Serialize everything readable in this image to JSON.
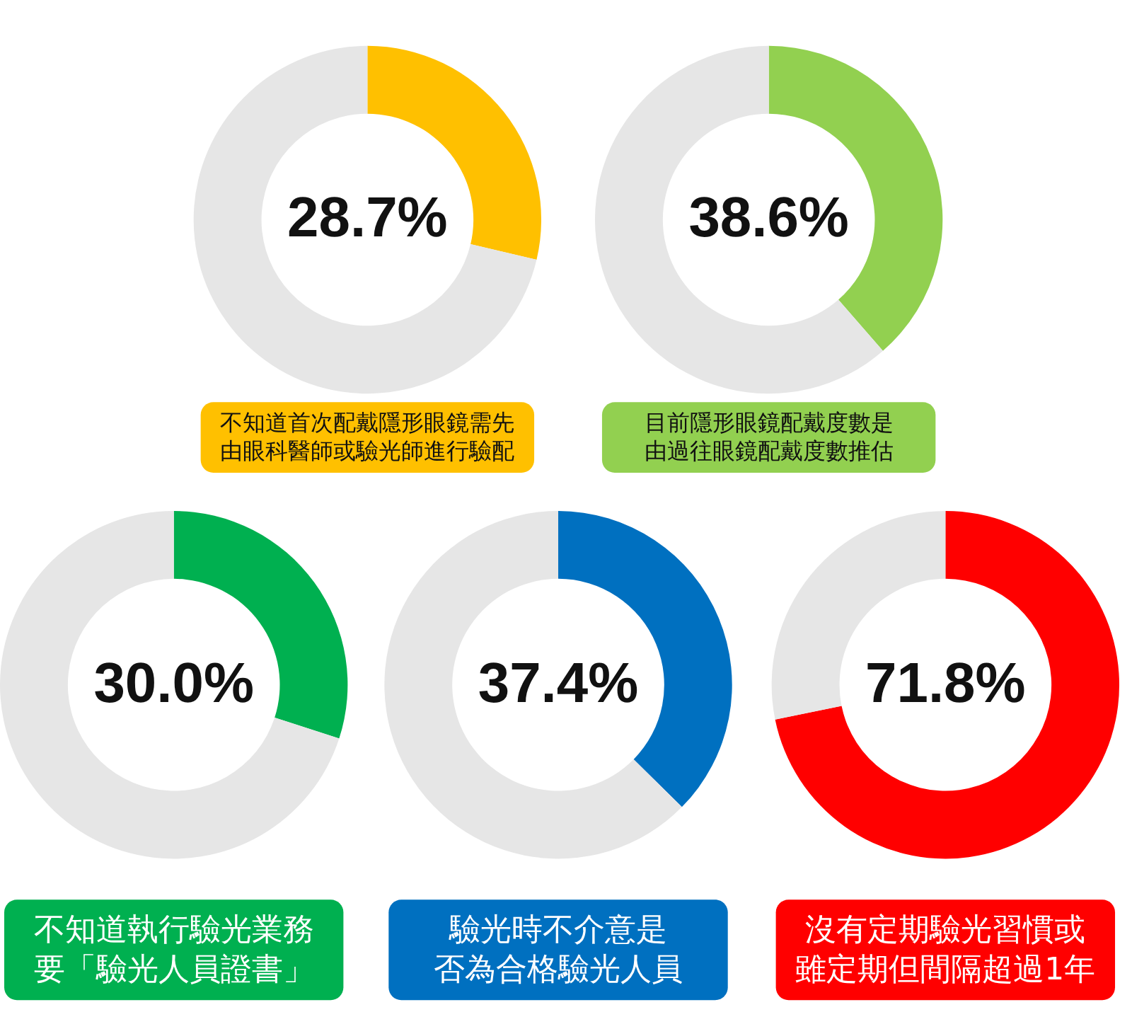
{
  "chart_data": [
    {
      "type": "donut",
      "title": "不知道首次配戴隱形眼鏡需先由眼科醫師或驗光師進行驗配",
      "categories": [
        null,
        null
      ],
      "values": [
        28.7,
        71.3
      ],
      "colors": [
        "#ffc000",
        "#e6e6e6"
      ],
      "value_labels": [
        "28.7%",
        null
      ]
    },
    {
      "type": "donut",
      "title": "目前隱形眼鏡配戴度數是由過往眼鏡配戴度數推估",
      "categories": [
        null,
        null
      ],
      "values": [
        38.6,
        61.4
      ],
      "colors": [
        "#92d050",
        "#e6e6e6"
      ],
      "value_labels": [
        "38.6%",
        null
      ]
    },
    {
      "type": "donut",
      "title": "不知道執行驗光業務要「驗光人員證書」",
      "categories": [
        null,
        null
      ],
      "values": [
        30.0,
        70.0
      ],
      "colors": [
        "#00b050",
        "#e6e6e6"
      ],
      "value_labels": [
        "30.0%",
        null
      ]
    },
    {
      "type": "donut",
      "title": "驗光時不介意是否為合格驗光人員",
      "categories": [
        null,
        null
      ],
      "values": [
        37.4,
        62.6
      ],
      "colors": [
        "#0070c0",
        "#e6e6e6"
      ],
      "value_labels": [
        "37.4%",
        null
      ]
    },
    {
      "type": "donut",
      "title": "沒有定期驗光習慣或雖定期但間隔超過1年",
      "categories": [
        null,
        null
      ],
      "values": [
        71.8,
        28.2
      ],
      "colors": [
        "#ff0000",
        "#e6e6e6"
      ],
      "value_labels": [
        "71.8%",
        null
      ]
    }
  ]
}
